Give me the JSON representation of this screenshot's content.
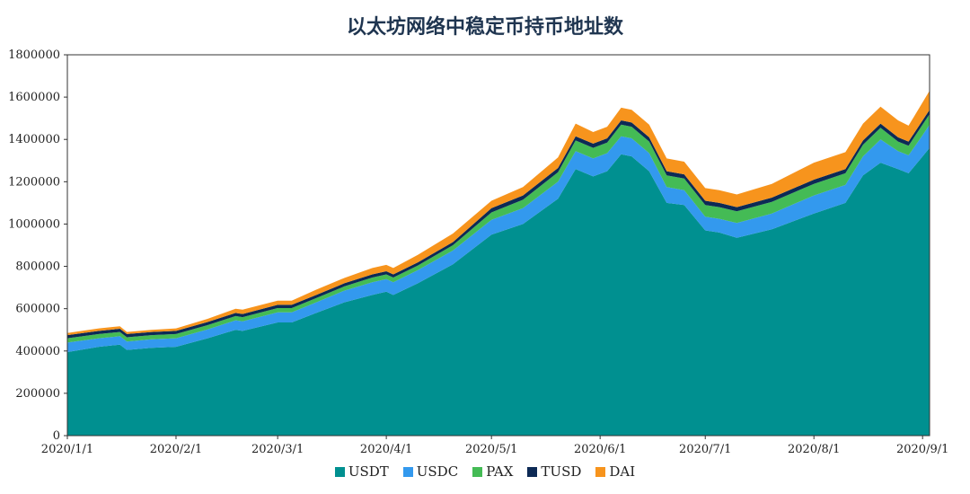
{
  "chart_data": {
    "type": "area",
    "stacked": true,
    "title": "以太坊网络中稳定币持币地址数",
    "xlabel": "",
    "ylabel": "",
    "ylim": [
      0,
      1800000
    ],
    "yticks": [
      "0",
      "200000",
      "400000",
      "600000",
      "800000",
      "1000000",
      "1200000",
      "1400000",
      "1600000",
      "1800000"
    ],
    "xlim": [
      "2020-01-01",
      "2020-09-03"
    ],
    "xticks": [
      {
        "date": "2020-01-01",
        "label": "2020/1/1"
      },
      {
        "date": "2020-02-01",
        "label": "2020/2/1"
      },
      {
        "date": "2020-03-01",
        "label": "2020/3/1"
      },
      {
        "date": "2020-04-01",
        "label": "2020/4/1"
      },
      {
        "date": "2020-05-01",
        "label": "2020/5/1"
      },
      {
        "date": "2020-06-01",
        "label": "2020/6/1"
      },
      {
        "date": "2020-07-01",
        "label": "2020/7/1"
      },
      {
        "date": "2020-08-01",
        "label": "2020/8/1"
      },
      {
        "date": "2020-09-01",
        "label": "2020/9/1"
      }
    ],
    "grid": false,
    "legend_position": "bottom",
    "x": [
      "2020-01-01",
      "2020-01-10",
      "2020-01-16",
      "2020-01-18",
      "2020-01-25",
      "2020-02-01",
      "2020-02-10",
      "2020-02-18",
      "2020-02-20",
      "2020-03-01",
      "2020-03-05",
      "2020-03-12",
      "2020-03-20",
      "2020-03-28",
      "2020-04-01",
      "2020-04-03",
      "2020-04-10",
      "2020-04-20",
      "2020-05-01",
      "2020-05-10",
      "2020-05-20",
      "2020-05-25",
      "2020-05-30",
      "2020-06-03",
      "2020-06-07",
      "2020-06-10",
      "2020-06-15",
      "2020-06-20",
      "2020-06-25",
      "2020-07-01",
      "2020-07-05",
      "2020-07-10",
      "2020-07-20",
      "2020-08-01",
      "2020-08-10",
      "2020-08-15",
      "2020-08-20",
      "2020-08-25",
      "2020-08-28",
      "2020-09-01",
      "2020-09-03"
    ],
    "series": [
      {
        "name": "USDT",
        "color": "#009090",
        "values": [
          395000,
          420000,
          430000,
          405000,
          415000,
          420000,
          460000,
          500000,
          495000,
          535000,
          535000,
          580000,
          630000,
          665000,
          680000,
          665000,
          720000,
          810000,
          950000,
          1000000,
          1120000,
          1260000,
          1225000,
          1250000,
          1330000,
          1320000,
          1250000,
          1100000,
          1090000,
          970000,
          960000,
          935000,
          975000,
          1050000,
          1100000,
          1230000,
          1290000,
          1260000,
          1240000,
          1320000,
          1360000
        ]
      },
      {
        "name": "USDC",
        "color": "#3399ee",
        "values": [
          45000,
          40000,
          40000,
          40000,
          40000,
          40000,
          42000,
          45000,
          45000,
          48000,
          48000,
          50000,
          55000,
          60000,
          60000,
          60000,
          62000,
          65000,
          70000,
          75000,
          80000,
          85000,
          85000,
          85000,
          85000,
          85000,
          85000,
          75000,
          70000,
          65000,
          65000,
          70000,
          75000,
          85000,
          85000,
          90000,
          110000,
          85000,
          85000,
          100000,
          110000
        ]
      },
      {
        "name": "PAX",
        "color": "#44bb55",
        "values": [
          20000,
          20000,
          20000,
          20000,
          20000,
          20000,
          20000,
          20000,
          20000,
          20000,
          20000,
          20000,
          20000,
          22000,
          22000,
          22000,
          22000,
          25000,
          35000,
          40000,
          45000,
          50000,
          50000,
          50000,
          55000,
          55000,
          55000,
          55000,
          55000,
          55000,
          55000,
          55000,
          55000,
          55000,
          55000,
          55000,
          55000,
          45000,
          45000,
          50000,
          50000
        ]
      },
      {
        "name": "TUSD",
        "color": "#0d2a55",
        "values": [
          15000,
          15000,
          15000,
          15000,
          15000,
          15000,
          15000,
          15000,
          15000,
          15000,
          15000,
          15000,
          15000,
          15000,
          15000,
          15000,
          15000,
          15000,
          20000,
          20000,
          20000,
          20000,
          20000,
          20000,
          20000,
          20000,
          20000,
          20000,
          20000,
          20000,
          20000,
          20000,
          20000,
          20000,
          20000,
          20000,
          20000,
          20000,
          20000,
          20000,
          20000
        ]
      },
      {
        "name": "DAI",
        "color": "#f7941d",
        "values": [
          10000,
          12000,
          12000,
          10000,
          10000,
          12000,
          15000,
          20000,
          20000,
          20000,
          20000,
          25000,
          25000,
          30000,
          30000,
          30000,
          35000,
          40000,
          35000,
          40000,
          50000,
          60000,
          55000,
          55000,
          60000,
          60000,
          60000,
          60000,
          60000,
          60000,
          60000,
          60000,
          65000,
          80000,
          80000,
          80000,
          80000,
          80000,
          75000,
          85000,
          90000
        ]
      }
    ]
  }
}
